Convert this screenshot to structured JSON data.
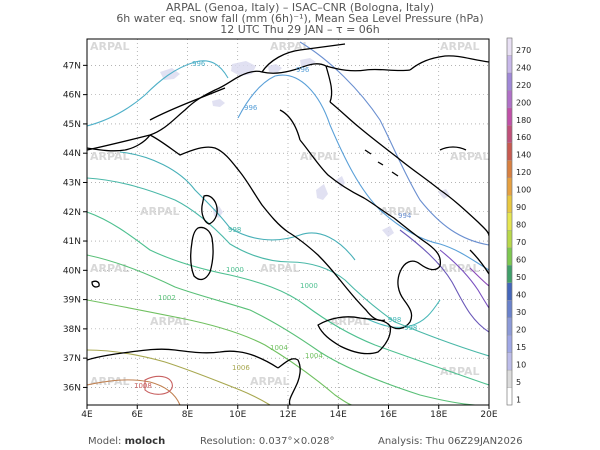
{
  "header": {
    "line1": "ARPAL (Genoa, Italy)  –  ISAC–CNR (Bologna, Italy)",
    "line2": "6h water eq. snow fall (mm (6h)⁻¹), Mean Sea Level Pressure (hPa)",
    "line3": "12 UTC Thu 29 JAN  –  τ = 06h"
  },
  "map": {
    "lon_range": [
      4,
      20
    ],
    "lat_range": [
      35.4,
      47.9
    ],
    "lon_ticks": [
      "4E",
      "6E",
      "8E",
      "10E",
      "12E",
      "14E",
      "16E",
      "18E",
      "20E"
    ],
    "lat_ticks": [
      "36N",
      "37N",
      "38N",
      "39N",
      "40N",
      "41N",
      "42N",
      "43N",
      "44N",
      "45N",
      "46N",
      "47N"
    ],
    "watermark": "ARPAL",
    "isobar_labels": [
      "996",
      "996",
      "996",
      "998",
      "1000",
      "1000",
      "1002",
      "1004",
      "1006",
      "1008",
      "994",
      "998",
      "998",
      "1004"
    ]
  },
  "colorbar": {
    "levels": [
      "1",
      "5",
      "10",
      "15",
      "20",
      "30",
      "40",
      "50",
      "60",
      "70",
      "80",
      "90",
      "100",
      "120",
      "140",
      "160",
      "180",
      "200",
      "220",
      "240",
      "270"
    ],
    "colors": [
      "#ffffff",
      "#dcdcdc",
      "#bdbdea",
      "#a0a8e6",
      "#8c9ad8",
      "#6a82cc",
      "#4466bb",
      "#3f9f6a",
      "#7ec850",
      "#b8d84a",
      "#e6e650",
      "#e8c840",
      "#e6a040",
      "#d88040",
      "#c85a50",
      "#c0507a",
      "#c050a8",
      "#b070c8",
      "#a088d8",
      "#c8b8ea",
      "#e8e0f4"
    ]
  },
  "footer": {
    "model_label": "Model:",
    "model_value": "moloch",
    "resolution_label": "Resolution:",
    "resolution_value": "0.037°×0.028°",
    "analysis_label": "Analysis:",
    "analysis_value": "Thu  06Z29JAN2026"
  }
}
